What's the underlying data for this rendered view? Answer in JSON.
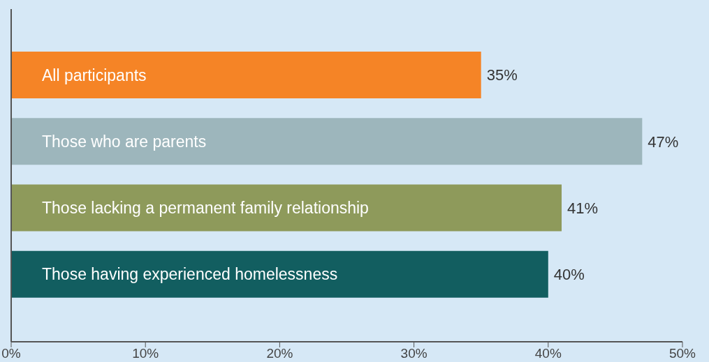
{
  "chart_data": {
    "type": "bar",
    "orientation": "horizontal",
    "categories": [
      "All participants",
      "Those who are parents",
      "Those lacking a permanent family relationship",
      "Those having experienced homelessness"
    ],
    "values": [
      35,
      47,
      41,
      40
    ],
    "colors": [
      "#f58426",
      "#9db6bc",
      "#8e9a5b",
      "#125e60"
    ],
    "value_labels": [
      "35%",
      "47%",
      "41%",
      "40%"
    ],
    "xlim": [
      0,
      50
    ],
    "xticks": [
      {
        "value": 0,
        "label": "0%"
      },
      {
        "value": 10,
        "label": "10%"
      },
      {
        "value": 20,
        "label": "20%"
      },
      {
        "value": 30,
        "label": "30%"
      },
      {
        "value": 40,
        "label": "40%"
      },
      {
        "value": 50,
        "label": "50%"
      }
    ],
    "grid": false,
    "legend": false
  }
}
